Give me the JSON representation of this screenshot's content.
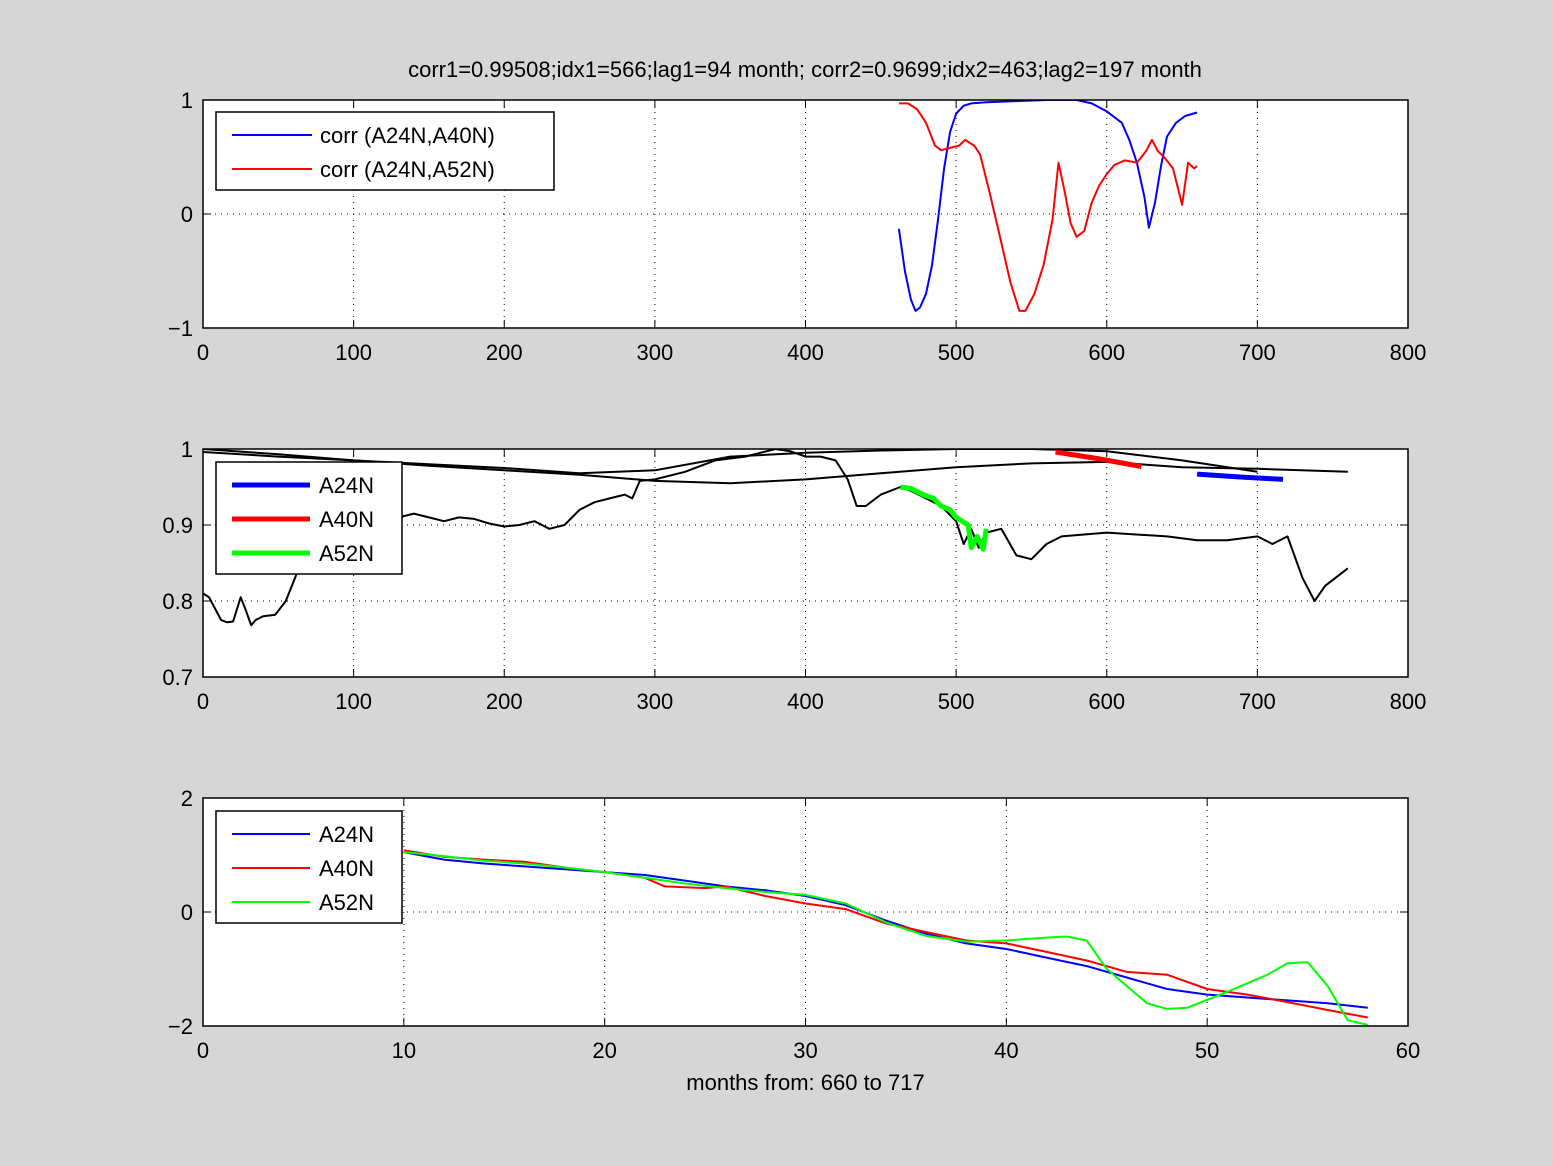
{
  "figure": {
    "title": "corr1=0.99508;idx1=566;lag1=94 month;   corr2=0.9699;idx2=463;lag2=197 month",
    "colors": {
      "background": "#d6d6d6",
      "axes": "#ffffff",
      "blue": "#0000ff",
      "red": "#ff0000",
      "green": "#00ff00",
      "black": "#000000"
    }
  },
  "chart_data": [
    {
      "type": "line",
      "title": "",
      "xlabel": "",
      "ylabel": "",
      "xlim": [
        0,
        800
      ],
      "ylim": [
        -1,
        1
      ],
      "xticks": [
        0,
        100,
        200,
        300,
        400,
        500,
        600,
        700,
        800
      ],
      "yticks": [
        -1,
        0,
        1
      ],
      "xtick_labels": [
        "0",
        "100",
        "200",
        "300",
        "400",
        "500",
        "600",
        "700",
        "800"
      ],
      "ytick_labels": [
        "−1",
        "0",
        "1"
      ],
      "grid": true,
      "legend_position": "top-left",
      "series": [
        {
          "name": "corr (A24N,A40N)",
          "color": "#0000ff",
          "width": 2,
          "legend": true,
          "x": [
            462,
            466,
            470,
            473,
            476,
            480,
            484,
            488,
            492,
            496,
            500,
            505,
            510,
            520,
            540,
            560,
            580,
            590,
            600,
            610,
            615,
            620,
            625,
            628,
            632,
            636,
            640,
            646,
            652,
            660
          ],
          "y": [
            -0.13,
            -0.5,
            -0.75,
            -0.85,
            -0.82,
            -0.7,
            -0.45,
            -0.05,
            0.4,
            0.72,
            0.88,
            0.95,
            0.97,
            0.98,
            0.99,
            1.0,
            1.0,
            0.97,
            0.9,
            0.8,
            0.65,
            0.45,
            0.15,
            -0.12,
            0.1,
            0.42,
            0.68,
            0.8,
            0.86,
            0.89
          ]
        },
        {
          "name": "corr (A24N,A52N)",
          "color": "#ff0000",
          "width": 2,
          "legend": true,
          "x": [
            462,
            468,
            474,
            480,
            486,
            490,
            496,
            502,
            506,
            512,
            516,
            522,
            530,
            536,
            542,
            546,
            552,
            558,
            564,
            568,
            572,
            576,
            580,
            585,
            590,
            595,
            600,
            605,
            612,
            620,
            626,
            630,
            634,
            638,
            644,
            650,
            654,
            658,
            660
          ],
          "y": [
            0.97,
            0.97,
            0.92,
            0.8,
            0.6,
            0.56,
            0.58,
            0.6,
            0.65,
            0.6,
            0.52,
            0.2,
            -0.25,
            -0.6,
            -0.85,
            -0.85,
            -0.7,
            -0.45,
            -0.05,
            0.45,
            0.2,
            -0.08,
            -0.2,
            -0.15,
            0.1,
            0.25,
            0.35,
            0.43,
            0.47,
            0.45,
            0.55,
            0.65,
            0.55,
            0.5,
            0.4,
            0.08,
            0.45,
            0.4,
            0.42
          ]
        }
      ]
    },
    {
      "type": "line",
      "title": "",
      "xlabel": "",
      "ylabel": "",
      "xlim": [
        0,
        800
      ],
      "ylim": [
        0.7,
        1
      ],
      "xticks": [
        0,
        100,
        200,
        300,
        400,
        500,
        600,
        700,
        800
      ],
      "yticks": [
        0.7,
        0.8,
        0.9,
        1
      ],
      "xtick_labels": [
        "0",
        "100",
        "200",
        "300",
        "400",
        "500",
        "600",
        "700",
        "800"
      ],
      "ytick_labels": [
        "0.7",
        "0.8",
        "0.9",
        "1"
      ],
      "grid": true,
      "legend_position": "top-left",
      "series": [
        {
          "name": "",
          "color": "#000000",
          "width": 2,
          "legend": false,
          "x": [
            0,
            50,
            100,
            150,
            200,
            250,
            300,
            350,
            400,
            450,
            500,
            550,
            600,
            650,
            700,
            760
          ],
          "y": [
            0.996,
            0.99,
            0.985,
            0.978,
            0.972,
            0.966,
            0.958,
            0.955,
            0.96,
            0.968,
            0.976,
            0.981,
            0.983,
            0.976,
            0.974,
            0.97
          ]
        },
        {
          "name": "",
          "color": "#000000",
          "width": 2,
          "legend": false,
          "x": [
            0,
            50,
            100,
            150,
            200,
            250,
            300,
            350,
            400,
            450,
            500,
            550,
            600,
            650,
            700
          ],
          "y": [
            1.0,
            0.993,
            0.985,
            0.98,
            0.975,
            0.968,
            0.972,
            0.99,
            0.995,
            0.998,
            1.0,
            1.0,
            0.997,
            0.985,
            0.97
          ]
        },
        {
          "name": "",
          "color": "#000000",
          "width": 2,
          "legend": false,
          "x": [
            0,
            4,
            8,
            12,
            16,
            20,
            25,
            28,
            32,
            35,
            40,
            48,
            55,
            60,
            65,
            70,
            80,
            90,
            100,
            110,
            120,
            130,
            140,
            150,
            160,
            170,
            180,
            190,
            200,
            210,
            220,
            230,
            240,
            250,
            260,
            270,
            280,
            285,
            290,
            300,
            320,
            340,
            360,
            380,
            390,
            400,
            410,
            420,
            428,
            434,
            440,
            450,
            463,
            470,
            480,
            490,
            500,
            505,
            510,
            515,
            520,
            530,
            540,
            550,
            560,
            570,
            600,
            640,
            660,
            680,
            700,
            710,
            720,
            730,
            738,
            745,
            760
          ],
          "y": [
            0.81,
            0.805,
            0.79,
            0.775,
            0.772,
            0.773,
            0.805,
            0.79,
            0.768,
            0.775,
            0.78,
            0.782,
            0.8,
            0.825,
            0.85,
            0.875,
            0.895,
            0.905,
            0.91,
            0.912,
            0.908,
            0.91,
            0.915,
            0.91,
            0.905,
            0.91,
            0.908,
            0.902,
            0.898,
            0.9,
            0.905,
            0.895,
            0.9,
            0.92,
            0.93,
            0.935,
            0.94,
            0.935,
            0.958,
            0.96,
            0.97,
            0.985,
            0.99,
            1.0,
            0.997,
            0.99,
            0.99,
            0.985,
            0.96,
            0.925,
            0.925,
            0.94,
            0.95,
            0.945,
            0.935,
            0.925,
            0.905,
            0.875,
            0.895,
            0.87,
            0.89,
            0.895,
            0.86,
            0.855,
            0.875,
            0.885,
            0.89,
            0.885,
            0.88,
            0.88,
            0.885,
            0.875,
            0.885,
            0.83,
            0.8,
            0.82,
            0.843
          ]
        },
        {
          "name": "A24N",
          "color": "#0000ff",
          "width": 5,
          "legend": true,
          "x": [
            660,
            690,
            717
          ],
          "y": [
            0.967,
            0.963,
            0.96
          ]
        },
        {
          "name": "A40N",
          "color": "#ff0000",
          "width": 5,
          "legend": true,
          "x": [
            566,
            595,
            623
          ],
          "y": [
            0.996,
            0.987,
            0.977
          ]
        },
        {
          "name": "A52N",
          "color": "#00ff00",
          "width": 5,
          "legend": true,
          "x": [
            463,
            470,
            478,
            485,
            490,
            496,
            500,
            504,
            508,
            510,
            514,
            518,
            520
          ],
          "y": [
            0.95,
            0.948,
            0.94,
            0.935,
            0.925,
            0.92,
            0.91,
            0.905,
            0.9,
            0.87,
            0.885,
            0.868,
            0.895
          ]
        }
      ]
    },
    {
      "type": "line",
      "title": "",
      "xlabel": "months from: 660 to 717",
      "ylabel": "",
      "xlim": [
        0,
        60
      ],
      "ylim": [
        -2,
        2
      ],
      "xticks": [
        0,
        10,
        20,
        30,
        40,
        50,
        60
      ],
      "yticks": [
        -2,
        0,
        2
      ],
      "xtick_labels": [
        "0",
        "10",
        "20",
        "30",
        "40",
        "50",
        "60"
      ],
      "ytick_labels": [
        "−2",
        "0",
        "2"
      ],
      "grid": true,
      "legend_position": "top-left",
      "series": [
        {
          "name": "A24N",
          "color": "#0000ff",
          "width": 2,
          "legend": true,
          "x": [
            10,
            12,
            14,
            16,
            18,
            20,
            22,
            24,
            26,
            28,
            30,
            32,
            34,
            36,
            38,
            40,
            42,
            44,
            46,
            48,
            50,
            52,
            54,
            56,
            58
          ],
          "y": [
            1.05,
            0.92,
            0.85,
            0.8,
            0.75,
            0.7,
            0.65,
            0.55,
            0.45,
            0.38,
            0.28,
            0.12,
            -0.15,
            -0.38,
            -0.55,
            -0.65,
            -0.8,
            -0.95,
            -1.15,
            -1.35,
            -1.45,
            -1.5,
            -1.55,
            -1.6,
            -1.68
          ]
        },
        {
          "name": "A40N",
          "color": "#ff0000",
          "width": 2,
          "legend": true,
          "x": [
            10,
            12,
            14,
            16,
            18,
            20,
            22,
            23,
            25,
            26,
            28,
            30,
            32,
            34,
            36,
            38,
            40,
            42,
            44,
            46,
            48,
            50,
            52,
            54,
            56,
            58
          ],
          "y": [
            1.08,
            0.97,
            0.92,
            0.88,
            0.78,
            0.7,
            0.6,
            0.45,
            0.42,
            0.45,
            0.28,
            0.15,
            0.05,
            -0.2,
            -0.35,
            -0.5,
            -0.55,
            -0.7,
            -0.85,
            -1.05,
            -1.1,
            -1.35,
            -1.45,
            -1.58,
            -1.72,
            -1.85
          ]
        },
        {
          "name": "A52N",
          "color": "#00ff00",
          "width": 2,
          "legend": true,
          "x": [
            10,
            12,
            14,
            16,
            18,
            20,
            22,
            24,
            26,
            28,
            30,
            32,
            34,
            36,
            38,
            40,
            42,
            43,
            44,
            45,
            47,
            48,
            49,
            51,
            53,
            54,
            55,
            56,
            57,
            58
          ],
          "y": [
            1.05,
            0.98,
            0.9,
            0.85,
            0.78,
            0.7,
            0.6,
            0.5,
            0.42,
            0.35,
            0.3,
            0.15,
            -0.18,
            -0.42,
            -0.52,
            -0.5,
            -0.45,
            -0.43,
            -0.5,
            -1.0,
            -1.6,
            -1.7,
            -1.68,
            -1.4,
            -1.1,
            -0.9,
            -0.88,
            -1.3,
            -1.9,
            -1.98
          ]
        }
      ]
    }
  ]
}
